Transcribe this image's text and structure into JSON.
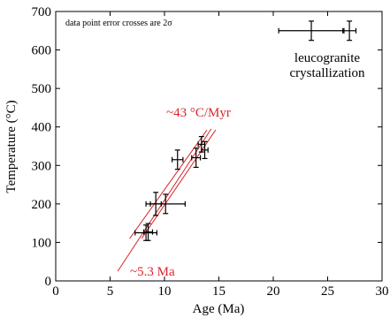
{
  "chart_data": {
    "type": "scatter",
    "title": "",
    "xlabel": "Age (Ma)",
    "ylabel": "Temperature (°C)",
    "xlim": [
      0,
      30
    ],
    "ylim": [
      0,
      700
    ],
    "xticks": [
      0,
      5,
      10,
      15,
      20,
      25,
      30
    ],
    "yticks": [
      0,
      100,
      200,
      300,
      400,
      500,
      600,
      700
    ],
    "grid": false,
    "points": [
      {
        "x": 8.3,
        "y": 125,
        "xerr": 1.0,
        "yerr": 20
      },
      {
        "x": 8.5,
        "y": 127,
        "xerr": 0.4,
        "yerr": 22
      },
      {
        "x": 9.2,
        "y": 200,
        "xerr": 0.5,
        "yerr": 30
      },
      {
        "x": 10.1,
        "y": 200,
        "xerr": 1.8,
        "yerr": 25
      },
      {
        "x": 11.2,
        "y": 315,
        "xerr": 0.5,
        "yerr": 25
      },
      {
        "x": 12.9,
        "y": 320,
        "xerr": 0.4,
        "yerr": 25
      },
      {
        "x": 13.4,
        "y": 355,
        "xerr": 0.3,
        "yerr": 20
      },
      {
        "x": 13.7,
        "y": 340,
        "xerr": 0.3,
        "yerr": 22
      },
      {
        "x": 23.5,
        "y": 650,
        "xerr": 3.0,
        "yerr": 25
      },
      {
        "x": 27.0,
        "y": 650,
        "xerr": 0.6,
        "yerr": 25
      }
    ],
    "fit_lines": {
      "color": "#d6262c",
      "center": [
        [
          5.7,
          25
        ],
        [
          14.3,
          395
        ]
      ],
      "upper": [
        [
          6.8,
          110
        ],
        [
          13.9,
          392
        ]
      ],
      "lower": [
        [
          7.9,
          110
        ],
        [
          14.7,
          392
        ]
      ]
    },
    "annotations": {
      "error_note": "data point error crosses are 2σ",
      "crystallization_line1": "leucogranite",
      "crystallization_line2": "crystallization",
      "rate": "~43 °C/Myr",
      "intercept": "~5.3 Ma"
    }
  }
}
